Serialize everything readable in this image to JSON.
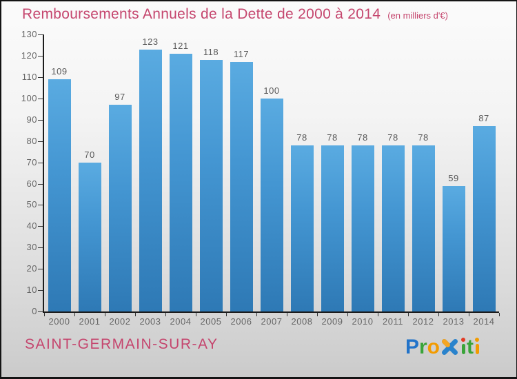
{
  "title": "Remboursements Annuels de la Dette de 2000 à 2014",
  "subtitle": "(en milliers d'€)",
  "footer": {
    "location": "SAINT-GERMAIN-SUR-AY"
  },
  "logo": {
    "text": "Proxiti",
    "parts": [
      {
        "type": "text",
        "char": "P",
        "color": "#2273c9"
      },
      {
        "type": "text",
        "char": "r",
        "color": "#3aa43a"
      },
      {
        "type": "text",
        "char": "o",
        "color": "#f29b00"
      },
      {
        "type": "x-icon",
        "body_color": "#2a83cc",
        "arm_color": "#f5a623"
      },
      {
        "type": "dot-i",
        "dot_color": "#e23b24",
        "stem_color": "#3aa43a"
      },
      {
        "type": "text",
        "char": "t",
        "color": "#3aa43a"
      },
      {
        "type": "dot-i",
        "dot_color": "#f29b00",
        "stem_color": "#f29b00"
      }
    ]
  },
  "colors": {
    "title_pink": "#c5466e",
    "bar_top": "#5aabe1",
    "bar_bottom": "#2e79b5",
    "axis": "#1c1c1c",
    "tick_label_gray": "#666666",
    "value_label_gray": "#585858",
    "frame_border": "#141414"
  },
  "chart_data": {
    "type": "bar",
    "title": "Remboursements Annuels de la Dette de 2000 à 2014",
    "subtitle": "(en milliers d'€)",
    "categories": [
      "2000",
      "2001",
      "2002",
      "2003",
      "2004",
      "2005",
      "2006",
      "2007",
      "2008",
      "2009",
      "2010",
      "2011",
      "2012",
      "2013",
      "2014"
    ],
    "values": [
      109,
      70,
      97,
      123,
      121,
      118,
      117,
      100,
      78,
      78,
      78,
      78,
      78,
      59,
      87
    ],
    "xlabel": "",
    "ylabel": "",
    "ylim": [
      0,
      130
    ],
    "ytick_step": 10,
    "ytick_labels": [
      "0",
      "10",
      "20",
      "30",
      "40",
      "50",
      "60",
      "70",
      "80",
      "90",
      "100",
      "110",
      "120",
      "130"
    ],
    "grid": false,
    "legend": false,
    "value_labels_shown": true
  }
}
